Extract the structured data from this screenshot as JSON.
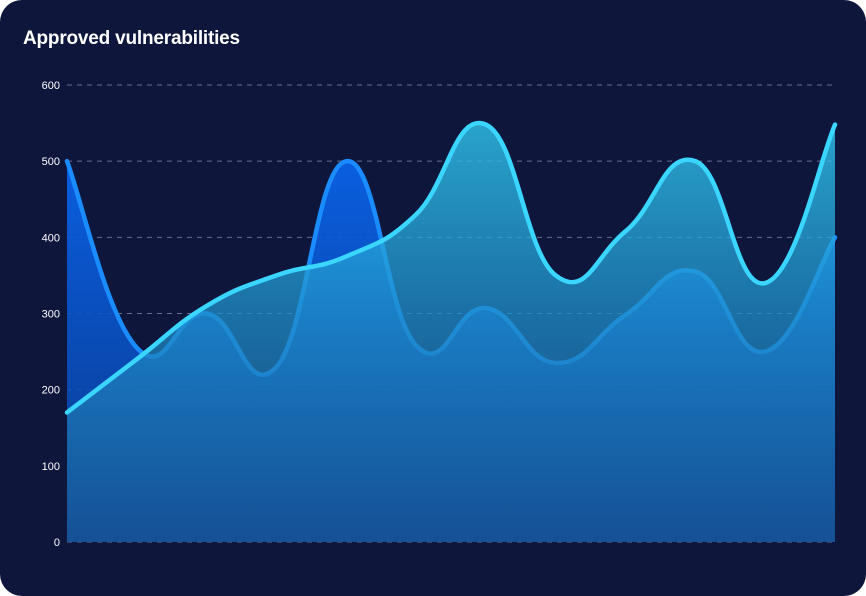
{
  "chart_data": {
    "type": "area",
    "title": "Approved vulnerabilities",
    "xlabel": "",
    "ylabel": "",
    "ylim": [
      0,
      600
    ],
    "yticks": [
      0,
      100,
      200,
      300,
      400,
      500,
      600
    ],
    "grid": true,
    "legend": "none",
    "series": [
      {
        "color": "#1a8cff",
        "values": [
          500,
          255,
          300,
          230,
          500,
          258,
          307,
          235,
          298,
          355,
          250,
          400
        ]
      },
      {
        "color": "#3ad6ff",
        "values": [
          170,
          240,
          310,
          350,
          375,
          430,
          548,
          350,
          408,
          500,
          340,
          548
        ]
      }
    ]
  }
}
